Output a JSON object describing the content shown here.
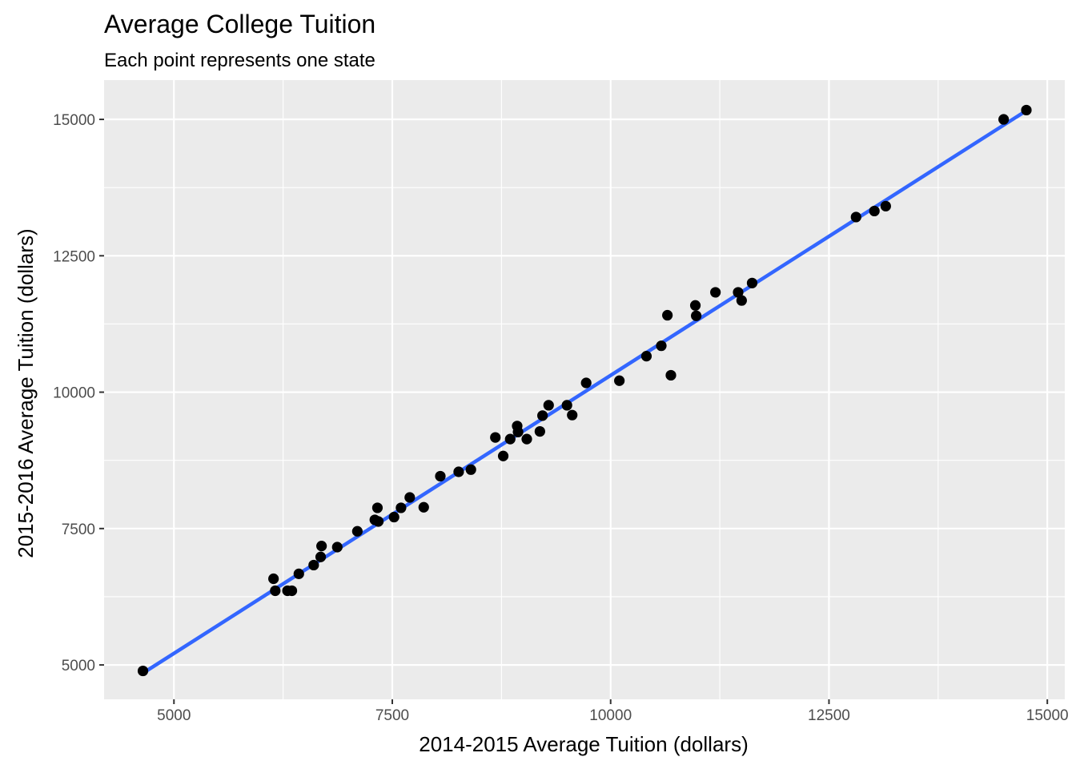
{
  "chart_data": {
    "type": "scatter",
    "title": "Average College Tuition",
    "subtitle": "Each point represents one state",
    "xlabel": "2014-2015 Average Tuition (dollars)",
    "ylabel": "2015-2016 Average Tuition (dollars)",
    "xlim": [
      4200,
      15200
    ],
    "ylim": [
      4370,
      15720
    ],
    "x_ticks": [
      "5000",
      "7500",
      "10000",
      "12500",
      "15000"
    ],
    "y_ticks": [
      "5000",
      "7500",
      "10000",
      "12500",
      "15000"
    ],
    "x_tick_values": [
      5000,
      7500,
      10000,
      12500,
      15000
    ],
    "y_tick_values": [
      5000,
      7500,
      10000,
      12500,
      15000
    ],
    "grid": true,
    "colors": {
      "panel_background": "#ebebeb",
      "grid": "#ffffff",
      "points": "#000000",
      "fit_line": "#3366ff"
    },
    "series": [
      {
        "x": [
          4645,
          6140,
          6160,
          6300,
          6350,
          6430,
          6600,
          6680,
          6690,
          6870,
          7100,
          7300,
          7330,
          7340,
          7520,
          7600,
          7700,
          7860,
          8050,
          8260,
          8400,
          8680,
          8770,
          8850,
          8930,
          8940,
          9040,
          9190,
          9220,
          9290,
          9500,
          9560,
          9720,
          10100,
          10410,
          10580,
          10650,
          10690,
          10970,
          10980,
          11200,
          11460,
          11500,
          11620,
          12810,
          13020,
          13150,
          14500,
          14760
        ],
        "y": [
          4890,
          6580,
          6360,
          6360,
          6360,
          6670,
          6830,
          6980,
          7180,
          7160,
          7450,
          7660,
          7880,
          7630,
          7710,
          7880,
          8070,
          7890,
          8460,
          8540,
          8580,
          9170,
          8830,
          9140,
          9380,
          9270,
          9140,
          9280,
          9570,
          9760,
          9760,
          9580,
          10170,
          10210,
          10660,
          10850,
          11410,
          10310,
          11590,
          11400,
          11830,
          11830,
          11680,
          12000,
          13210,
          13320,
          13410,
          15000,
          15170
        ]
      }
    ],
    "fit_line": {
      "x": [
        4645,
        14760
      ],
      "y": [
        4850,
        15160
      ]
    }
  }
}
